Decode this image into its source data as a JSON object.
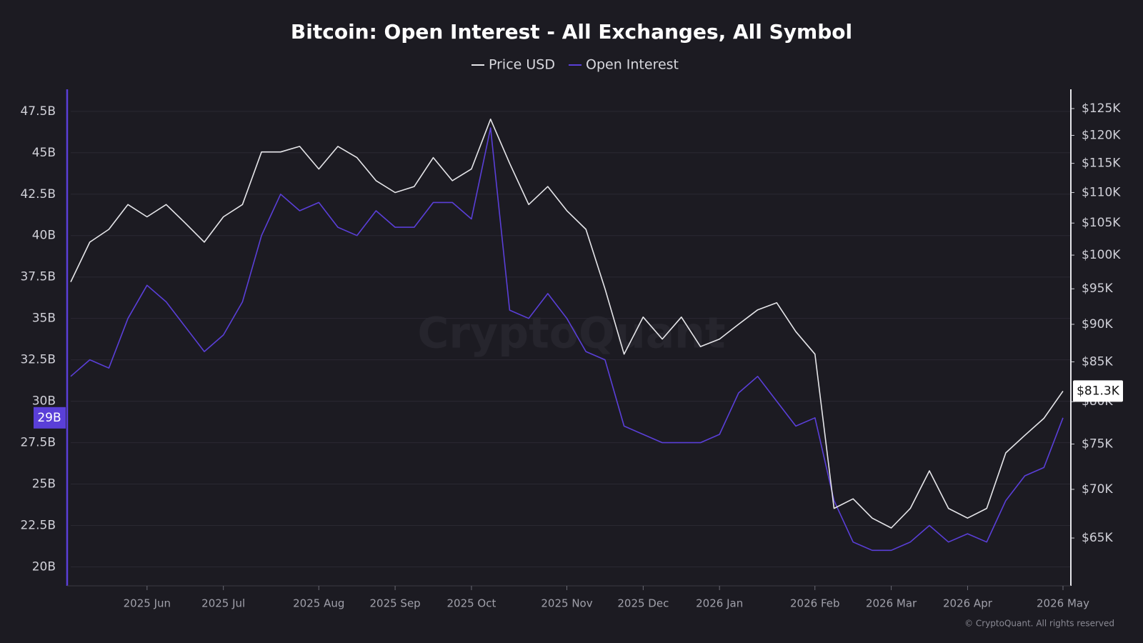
{
  "chart_data": {
    "type": "line",
    "title": "Bitcoin: Open Interest - All Exchanges, All Symbol",
    "watermark": "CryptoQuant",
    "credit": "© CryptoQuant. All rights reserved",
    "legend": "top",
    "grid": true,
    "categories": [
      null,
      null,
      null,
      null,
      "2025 Jun",
      null,
      null,
      null,
      "2025 Jul",
      null,
      null,
      null,
      null,
      "2025 Aug",
      null,
      null,
      null,
      "2025 Sep",
      null,
      null,
      null,
      "2025 Oct",
      null,
      null,
      null,
      null,
      "2025 Nov",
      null,
      null,
      null,
      "2025 Dec",
      null,
      null,
      null,
      "2026 Jan",
      null,
      null,
      null,
      null,
      "2026 Feb",
      null,
      null,
      null,
      "2026 Mar",
      null,
      null,
      null,
      "2026 Apr",
      null,
      null,
      null,
      null,
      "2026 May"
    ],
    "series": [
      {
        "name": "Price USD",
        "color": "#e6e6ea",
        "axis": "y2",
        "last_label": "$81.3K",
        "values": [
          96000,
          102000,
          104000,
          108000,
          106000,
          108000,
          105000,
          102000,
          106000,
          108000,
          117000,
          117000,
          118000,
          114000,
          118000,
          116000,
          112000,
          110000,
          111000,
          116000,
          112000,
          114000,
          123000,
          115000,
          108000,
          111000,
          107000,
          104000,
          95000,
          86000,
          91000,
          88000,
          91000,
          87000,
          88000,
          90000,
          92000,
          93000,
          89000,
          86000,
          68000,
          69000,
          67000,
          66000,
          68000,
          72000,
          68000,
          67000,
          68000,
          74000,
          76000,
          78000,
          81300
        ]
      },
      {
        "name": "Open Interest",
        "color": "#5a3fd8",
        "last_label": "29B",
        "values": [
          31.5,
          32.5,
          32,
          35,
          37,
          36,
          34.5,
          33,
          34,
          36,
          40,
          42.5,
          41.5,
          42,
          40.5,
          40,
          41.5,
          40.5,
          40.5,
          42,
          42,
          41,
          46.5,
          35.5,
          35,
          36.5,
          35,
          33,
          32.5,
          28.5,
          28,
          27.5,
          27.5,
          27.5,
          28,
          30.5,
          31.5,
          30,
          28.5,
          29,
          24,
          21.5,
          21,
          21,
          21.5,
          22.5,
          21.5,
          22,
          21.5,
          24,
          25.5,
          26,
          29
        ]
      }
    ],
    "ylim": [
      18.9,
      48.7
    ],
    "yticks": [
      {
        "value": 20,
        "label": "20B"
      },
      {
        "value": 22.5,
        "label": "22.5B"
      },
      {
        "value": 25,
        "label": "25B"
      },
      {
        "value": 27.5,
        "label": "27.5B"
      },
      {
        "value": 30,
        "label": "30B"
      },
      {
        "value": 32.5,
        "label": "32.5B"
      },
      {
        "value": 35,
        "label": "35B"
      },
      {
        "value": 37.5,
        "label": "37.5B"
      },
      {
        "value": 40,
        "label": "40B"
      },
      {
        "value": 42.5,
        "label": "42.5B"
      },
      {
        "value": 45,
        "label": "45B"
      },
      {
        "value": 47.5,
        "label": "47.5B"
      }
    ],
    "y2lim": [
      60500,
      128300
    ],
    "y2scale": "log",
    "y2ticks": [
      {
        "value": 65000,
        "label": "$65K"
      },
      {
        "value": 70000,
        "label": "$70K"
      },
      {
        "value": 75000,
        "label": "$75K"
      },
      {
        "value": 80000,
        "label": "$80K"
      },
      {
        "value": 85000,
        "label": "$85K"
      },
      {
        "value": 90000,
        "label": "$90K"
      },
      {
        "value": 95000,
        "label": "$95K"
      },
      {
        "value": 100000,
        "label": "$100K"
      },
      {
        "value": 105000,
        "label": "$105K"
      },
      {
        "value": 110000,
        "label": "$110K"
      },
      {
        "value": 115000,
        "label": "$115K"
      },
      {
        "value": 120000,
        "label": "$120K"
      },
      {
        "value": 125000,
        "label": "$125K"
      }
    ]
  }
}
